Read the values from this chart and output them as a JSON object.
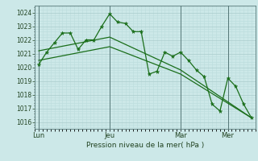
{
  "bg_color": "#cce8e8",
  "grid_major_color": "#aacccc",
  "grid_minor_color": "#bbdddd",
  "line_color": "#1a6e1a",
  "xlabel": "Pression niveau de la mer( hPa )",
  "ylim": [
    1015.5,
    1024.5
  ],
  "yticks": [
    1016,
    1017,
    1018,
    1019,
    1020,
    1021,
    1022,
    1023,
    1024
  ],
  "day_labels": [
    "Lun",
    "Jeu",
    "Mar",
    "Mer"
  ],
  "day_positions": [
    0,
    9,
    18,
    24
  ],
  "xlim": [
    -0.5,
    27.5
  ],
  "series1_x": [
    0,
    1,
    2,
    3,
    4,
    5,
    6,
    7,
    8,
    9,
    10,
    11,
    12,
    13,
    14,
    15,
    16,
    17,
    18,
    19,
    20,
    21,
    22,
    23,
    24,
    25,
    26,
    27
  ],
  "series1_y": [
    1020.2,
    1021.1,
    1021.8,
    1022.5,
    1022.5,
    1021.3,
    1022.0,
    1022.0,
    1023.0,
    1023.9,
    1023.3,
    1023.2,
    1022.6,
    1022.6,
    1019.5,
    1019.7,
    1021.1,
    1020.8,
    1021.1,
    1020.5,
    1019.8,
    1019.3,
    1017.3,
    1016.8,
    1019.2,
    1018.6,
    1017.3,
    1016.3
  ],
  "series2_x": [
    0,
    9,
    18,
    27
  ],
  "series2_y": [
    1020.5,
    1021.5,
    1019.5,
    1016.3
  ],
  "series3_x": [
    0,
    9,
    18,
    27
  ],
  "series3_y": [
    1021.2,
    1022.2,
    1019.8,
    1016.3
  ],
  "vline_color": "#557777",
  "spine_color": "#557777",
  "tick_color": "#224422",
  "label_color": "#224422"
}
